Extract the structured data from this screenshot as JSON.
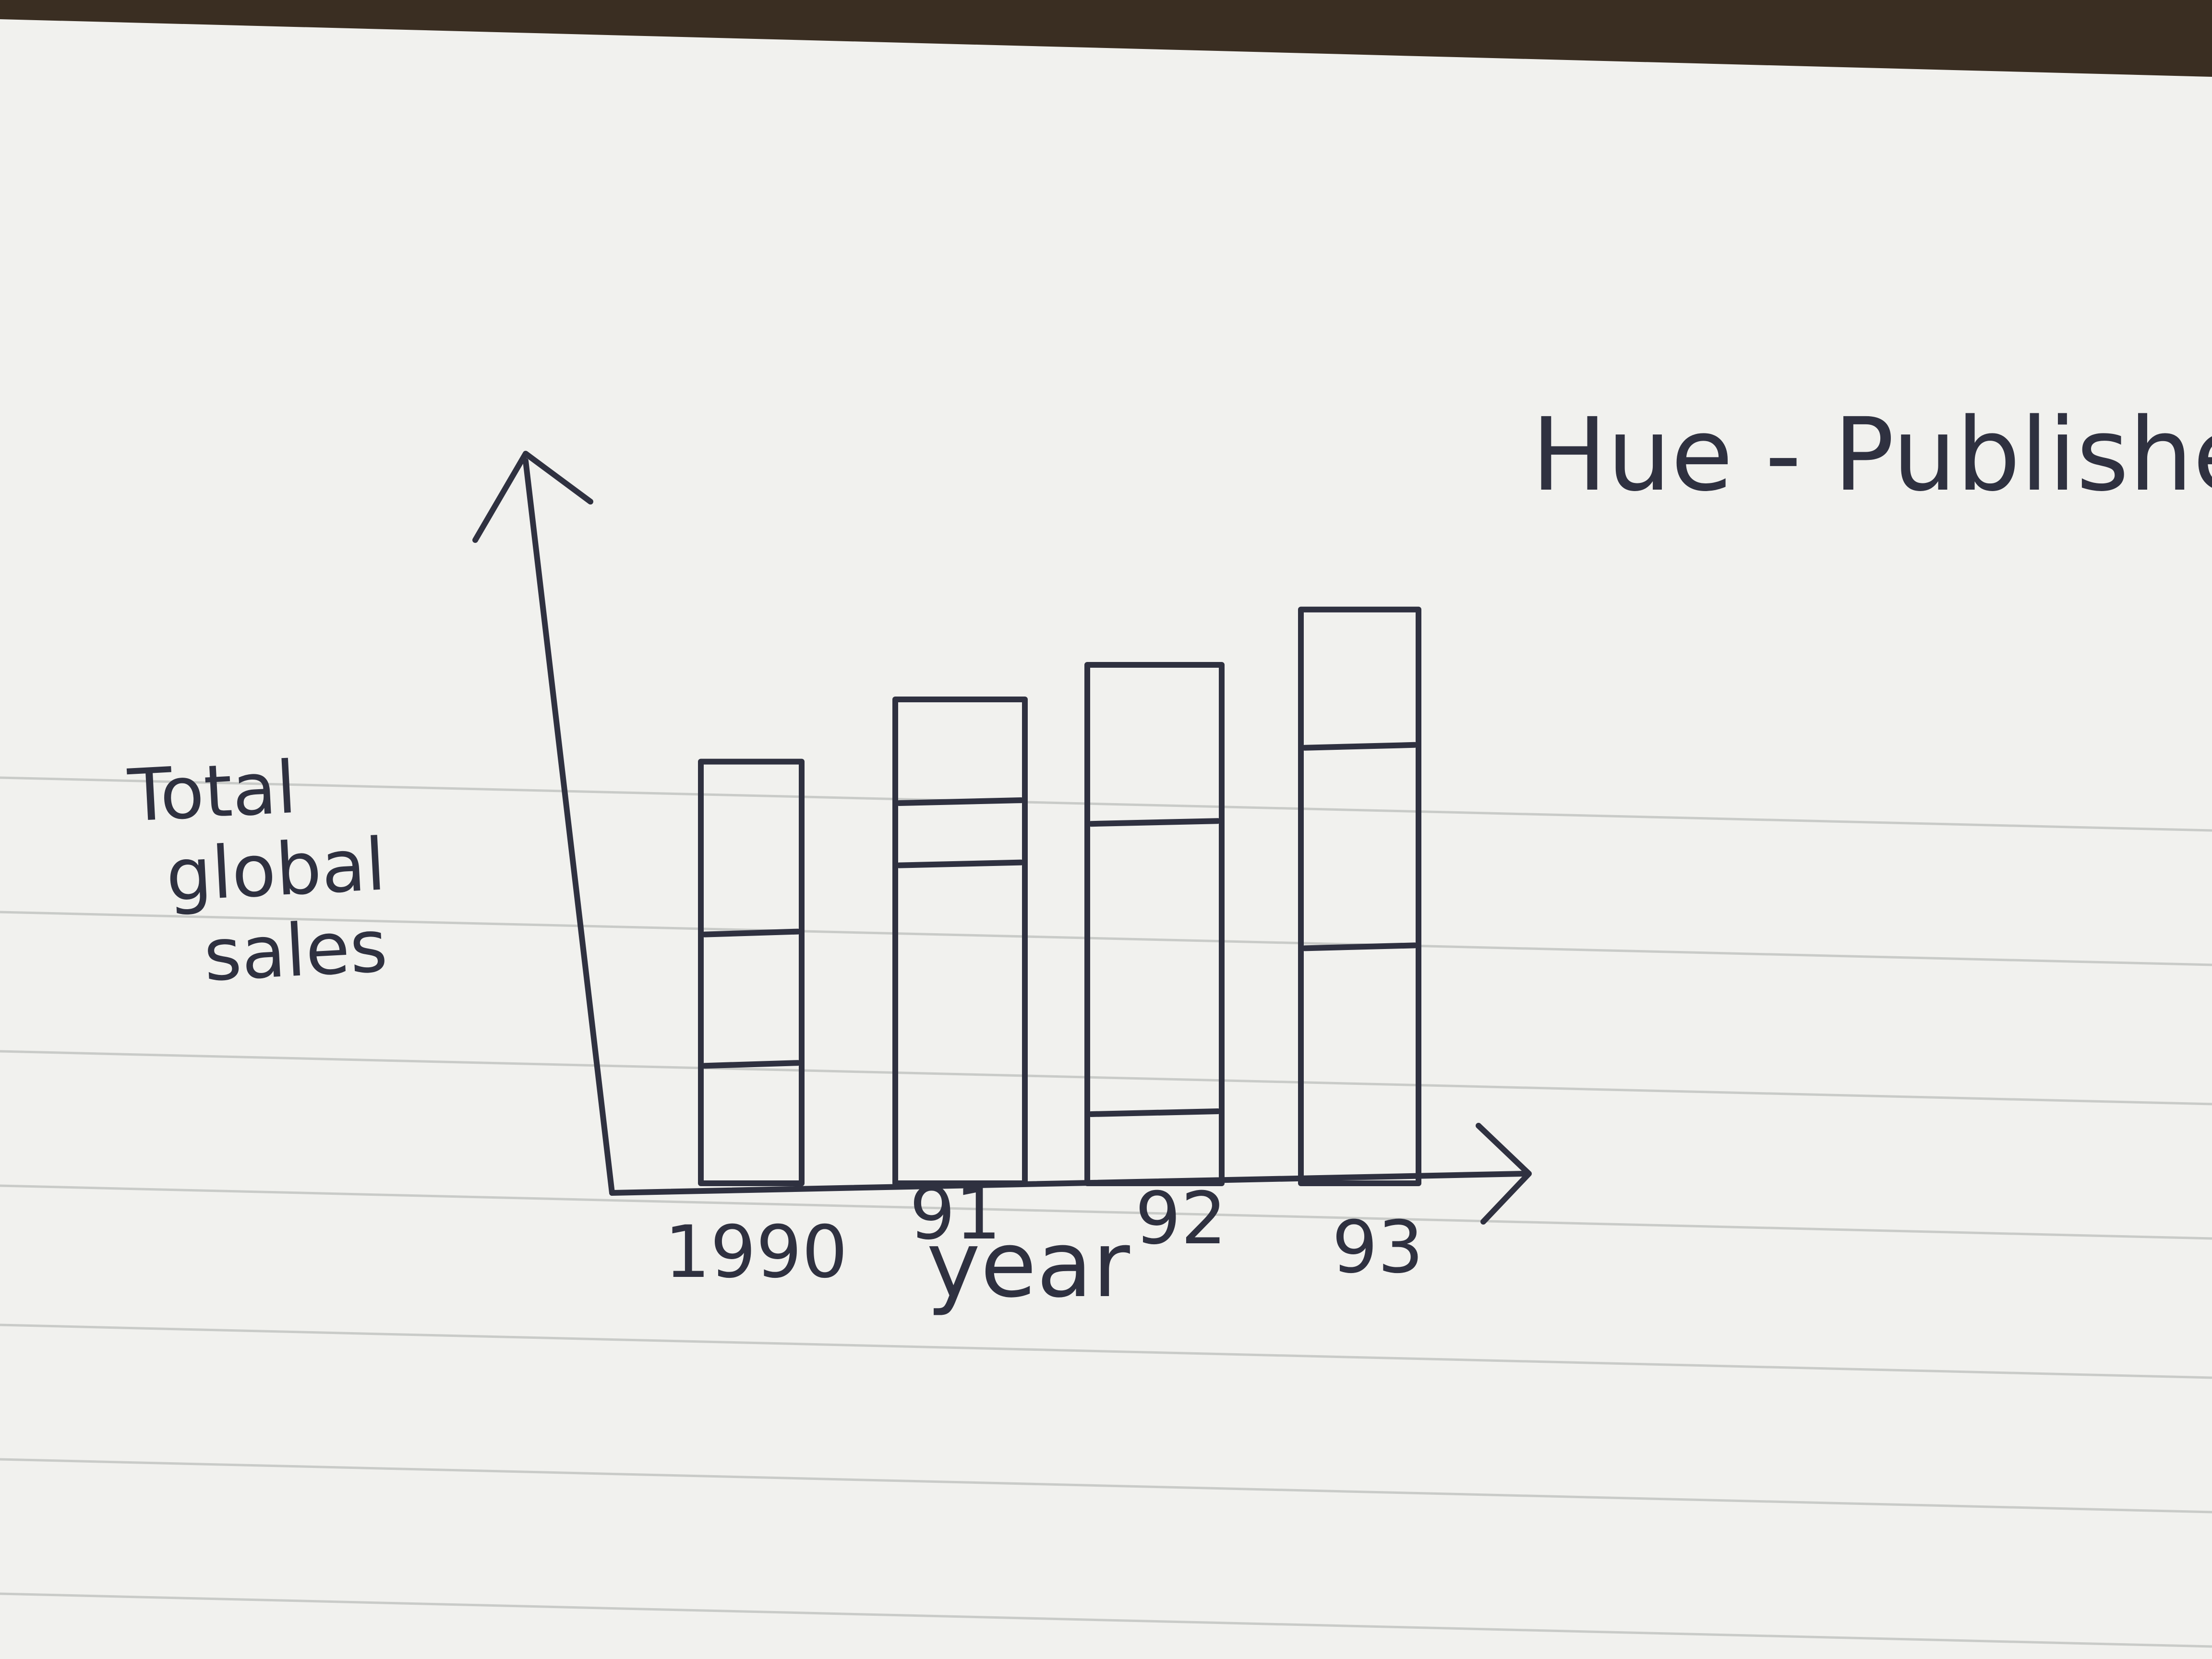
{
  "colors": {
    "paper": "#f1f1ee",
    "ink": "#2f3140",
    "rule_line": "#c9cbc8",
    "desk": "#3a2e22"
  },
  "chart_data": {
    "type": "bar",
    "stacked": true,
    "title": "Hue - Publishe",
    "ylabel": "Total global sales",
    "xlabel": "year",
    "categories": [
      "1990",
      "91",
      "92",
      "93"
    ],
    "totals": [
      6.1,
      7.0,
      7.5,
      8.3
    ],
    "segments": [
      [
        1.7,
        1.9,
        2.5
      ],
      [
        4.6,
        0.9,
        1.5
      ],
      [
        1.0,
        4.2,
        2.3
      ],
      [
        3.4,
        2.9,
        2.0
      ]
    ],
    "ylim": [
      0,
      10
    ],
    "grid": false,
    "legend": "none"
  }
}
